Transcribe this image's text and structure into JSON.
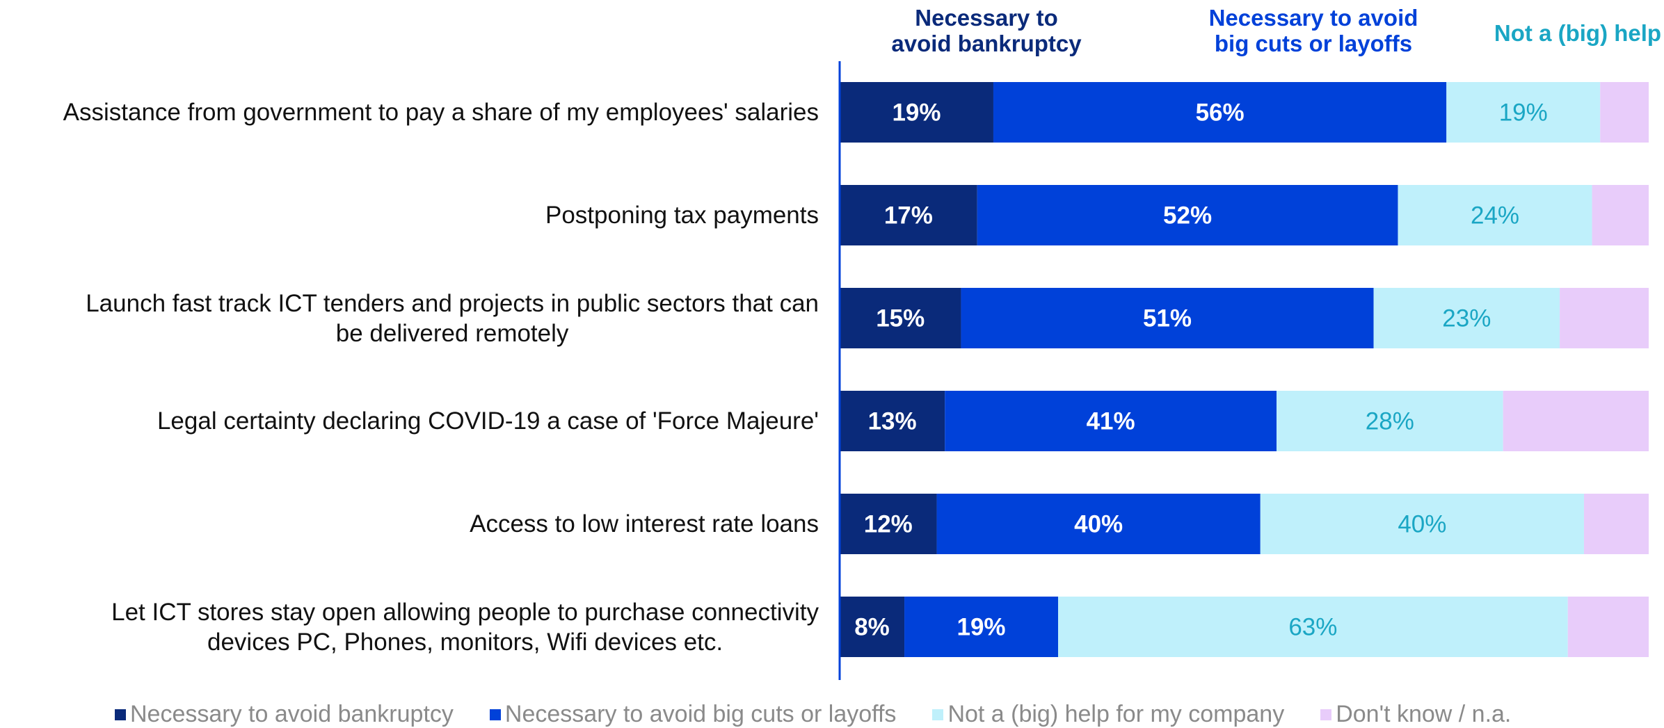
{
  "chart_data": {
    "type": "bar",
    "orientation": "horizontal",
    "stacked": true,
    "categories": [
      "Assistance from government to pay a share of my employees' salaries",
      "Postponing tax payments",
      "Launch fast track ICT tenders and projects in public sectors that can be delivered remotely",
      "Legal certainty declaring COVID-19 a case of 'Force Majeure'",
      "Access to low interest rate loans",
      "Let ICT stores stay open allowing people to purchase connectivity devices PC, Phones, monitors, Wifi devices etc."
    ],
    "category_lines": [
      [
        "Assistance from government to pay a share of my employees' salaries"
      ],
      [
        "Postponing tax payments"
      ],
      [
        "Launch fast track ICT tenders and projects in public sectors that can",
        "be delivered remotely"
      ],
      [
        "Legal certainty declaring COVID-19 a case of 'Force Majeure'"
      ],
      [
        "Access to low interest rate loans"
      ],
      [
        "Let ICT stores stay open allowing people to purchase connectivity",
        "devices PC, Phones, monitors, Wifi devices etc."
      ]
    ],
    "series": [
      {
        "name": "Necessary to avoid bankruptcy",
        "values": [
          19,
          17,
          15,
          13,
          12,
          8
        ],
        "color": "#0a2a7a",
        "label_color": "#ffffff",
        "bold": true,
        "show_labels": true
      },
      {
        "name": "Necessary to avoid big cuts or layoffs",
        "values": [
          56,
          52,
          51,
          41,
          40,
          19
        ],
        "color": "#0041d9",
        "label_color": "#ffffff",
        "bold": true,
        "show_labels": true
      },
      {
        "name": "Not a (big) help for my company",
        "values": [
          19,
          24,
          23,
          28,
          40,
          63
        ],
        "color": "#bff0fb",
        "label_color": "#1aa6c4",
        "bold": false,
        "show_labels": true
      },
      {
        "name": "Don't know / n.a.",
        "values": [
          6,
          7,
          11,
          18,
          8,
          10
        ],
        "color": "#e8ccfa",
        "label_color": "#9b59b6",
        "bold": false,
        "show_labels": false
      }
    ],
    "column_headers": [
      {
        "lines": [
          "Necessary to",
          "avoid bankruptcy"
        ],
        "color": "#0a2a7a"
      },
      {
        "lines": [
          "Necessary to avoid",
          "big cuts or layoffs"
        ],
        "color": "#0041d9"
      },
      {
        "lines": [
          "Not a (big) help"
        ],
        "color": "#1aa6c4"
      }
    ],
    "xlim": [
      0,
      100
    ],
    "value_suffix": "%",
    "legend_position": "bottom",
    "grid": false
  }
}
